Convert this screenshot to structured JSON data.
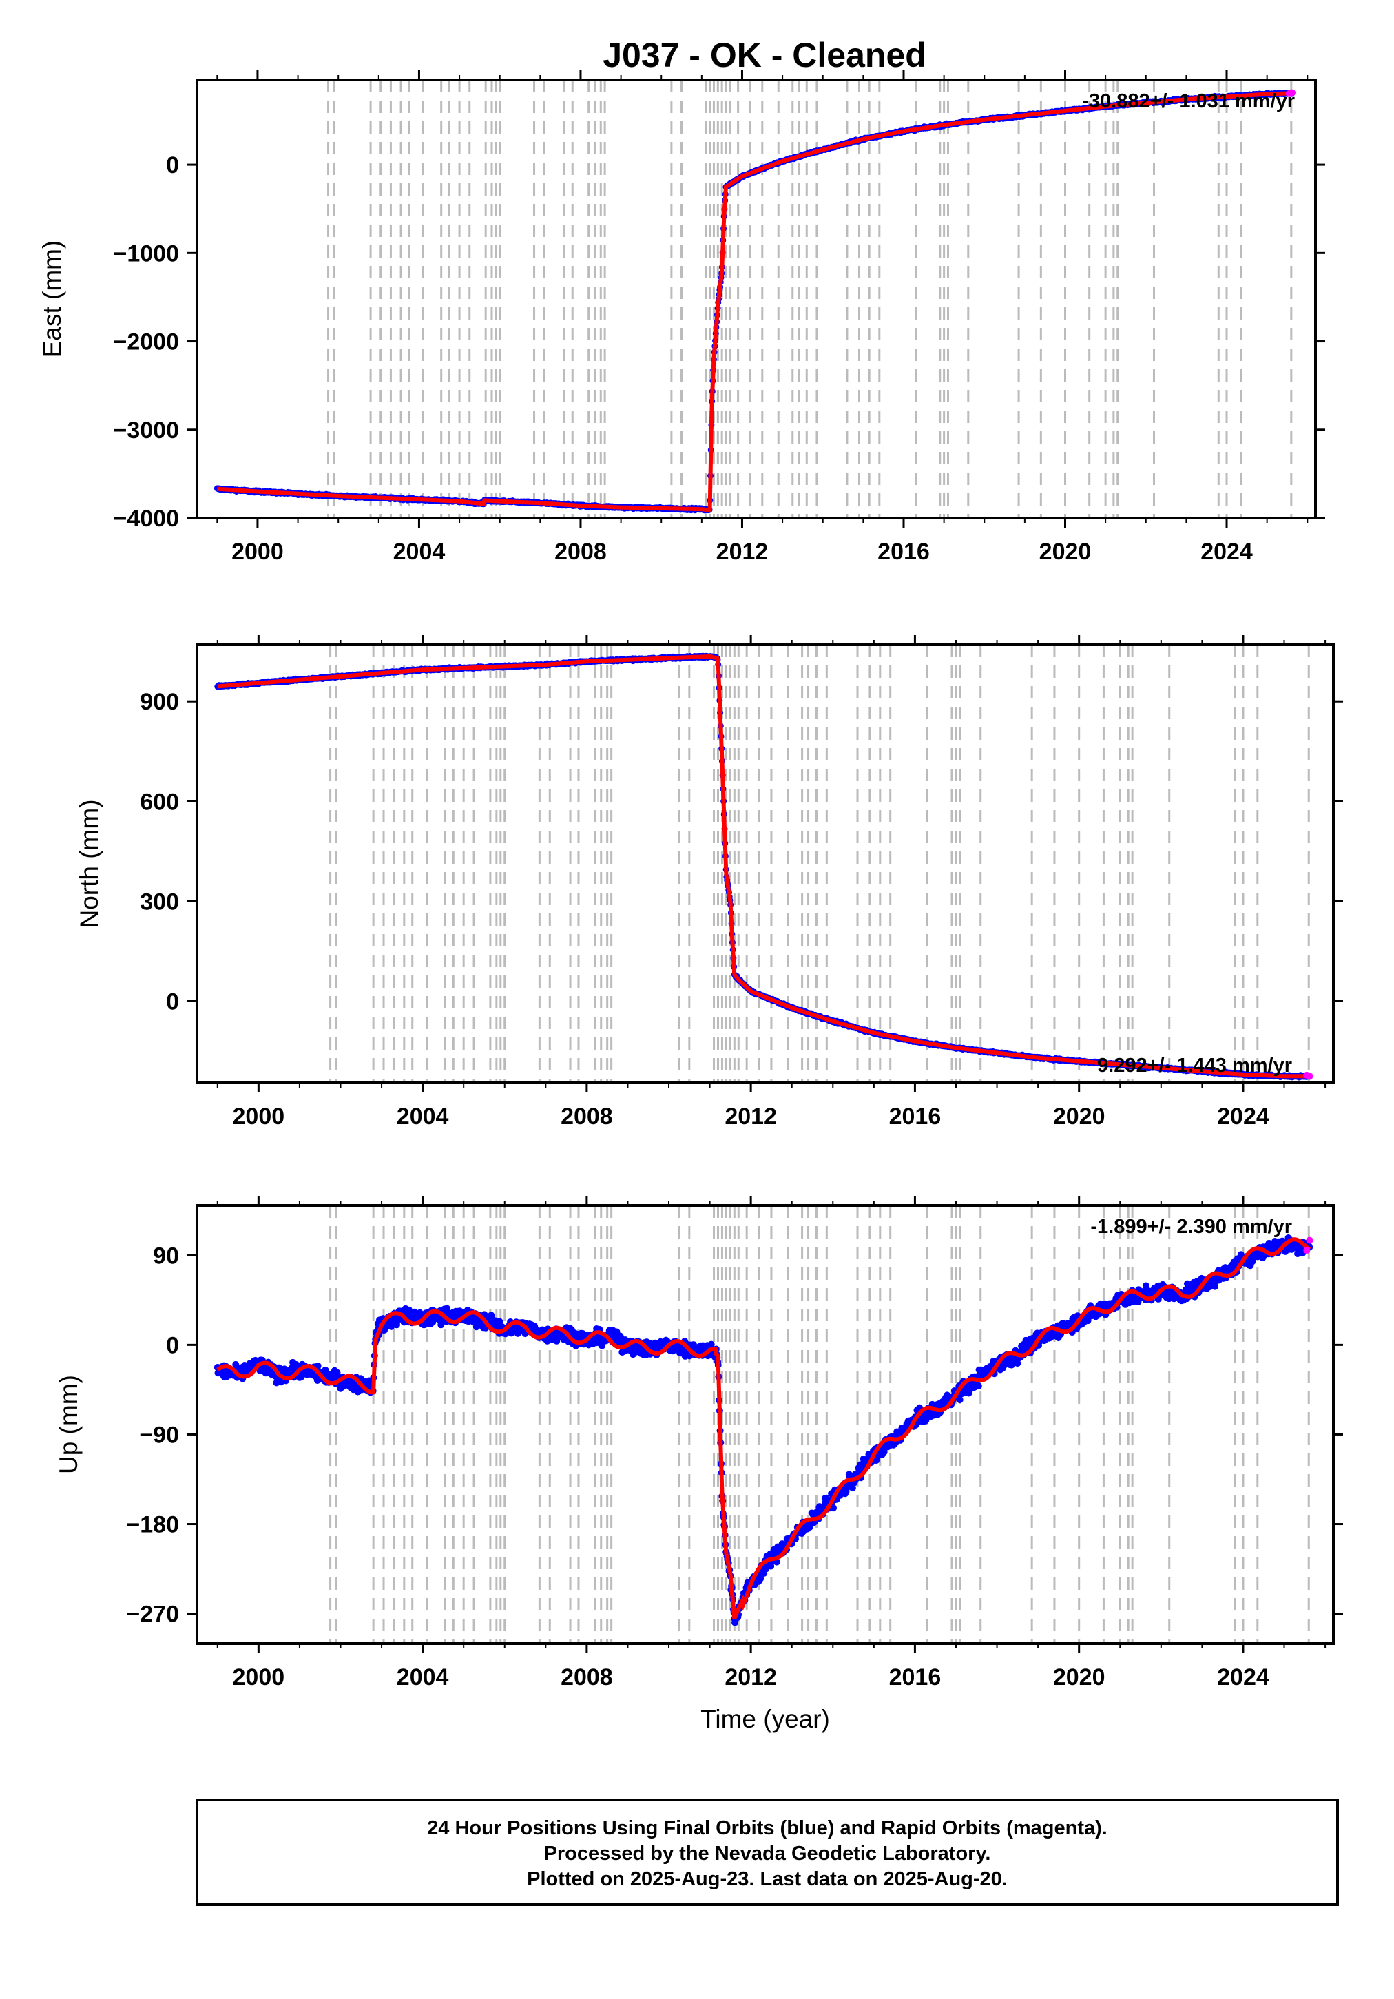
{
  "title": "J037  - OK - Cleaned",
  "footer": {
    "line1": "24 Hour Positions Using Final Orbits (blue) and Rapid Orbits (magenta).",
    "line2": "Processed by the Nevada Geodetic Laboratory.",
    "line3": "Plotted on 2025-Aug-23. Last data on 2025-Aug-20."
  },
  "colors": {
    "final_orbits": "#0000ff",
    "rapid_orbits": "#ff00ff",
    "model_fit": "#ff0000",
    "event_lines": "#bbbbbb"
  },
  "event_years": [
    2001.75,
    2001.9,
    2002.8,
    2003.05,
    2003.3,
    2003.55,
    2003.75,
    2004.1,
    2004.55,
    2004.75,
    2005.0,
    2005.25,
    2005.65,
    2005.8,
    2005.9,
    2006.0,
    2006.85,
    2007.1,
    2007.6,
    2007.8,
    2008.2,
    2008.35,
    2008.5,
    2008.6,
    2010.25,
    2010.5,
    2011.1,
    2011.2,
    2011.3,
    2011.4,
    2011.5,
    2011.6,
    2011.7,
    2011.9,
    2012.2,
    2012.5,
    2012.9,
    2013.25,
    2013.4,
    2013.6,
    2013.85,
    2014.6,
    2014.9,
    2015.15,
    2015.4,
    2016.3,
    2016.9,
    2017.0,
    2017.1,
    2017.6,
    2018.85,
    2019.4,
    2020.0,
    2020.6,
    2021.0,
    2021.2,
    2021.3,
    2022.2,
    2023.8,
    2024.0,
    2024.35,
    2025.6
  ],
  "chart_data": [
    {
      "type": "scatter",
      "name": "east",
      "ylabel": "East (mm)",
      "xlim": [
        1998.5,
        2026.2
      ],
      "ylim": [
        -4000,
        960
      ],
      "yticks": [
        -4000,
        -3000,
        -2000,
        -1000,
        0
      ],
      "ytick_labels": [
        "−4000",
        "−3000",
        "−2000",
        "−1000",
        "0"
      ],
      "xticks": [
        2000,
        2004,
        2008,
        2012,
        2016,
        2020,
        2024
      ],
      "xtick_labels": [
        "2000",
        "2004",
        "2008",
        "2012",
        "2016",
        "2020",
        "2024"
      ],
      "rate_label": "-30.882+/- 1.031 mm/yr",
      "grid": false,
      "series": [
        {
          "role": "final-orbits",
          "x": [
            1999.0,
            2000.0,
            2001.0,
            2002.0,
            2003.0,
            2004.0,
            2005.0,
            2005.6,
            2005.62,
            2006.0,
            2007.0,
            2008.0,
            2008.5,
            2009.0,
            2010.0,
            2011.0,
            2011.18,
            2011.2,
            2011.25,
            2011.3,
            2011.4,
            2011.5,
            2011.55,
            2011.6,
            2012.0,
            2013.0,
            2014.0,
            2015.0,
            2016.0,
            2017.0,
            2018.0,
            2019.0,
            2020.0,
            2021.0,
            2022.0,
            2023.0,
            2024.0,
            2025.0,
            2025.62
          ],
          "y": [
            -3670,
            -3700,
            -3725,
            -3750,
            -3770,
            -3790,
            -3810,
            -3840,
            -3800,
            -3810,
            -3830,
            -3860,
            -3870,
            -3880,
            -3890,
            -3900,
            -3910,
            -3905,
            -2700,
            -2200,
            -1600,
            -1200,
            -600,
            -250,
            -130,
            40,
            170,
            290,
            380,
            450,
            510,
            560,
            610,
            660,
            700,
            740,
            770,
            800,
            810
          ]
        },
        {
          "role": "rapid-orbits",
          "x": [
            2025.55,
            2025.62
          ],
          "y": [
            805,
            815
          ]
        }
      ]
    },
    {
      "type": "scatter",
      "name": "north",
      "ylabel": "North (mm)",
      "xlim": [
        1998.5,
        2026.2
      ],
      "ylim": [
        -245,
        1070
      ],
      "yticks": [
        0,
        300,
        600,
        900
      ],
      "ytick_labels": [
        "0",
        "300",
        "600",
        "900"
      ],
      "xticks": [
        2000,
        2004,
        2008,
        2012,
        2016,
        2020,
        2024
      ],
      "xtick_labels": [
        "2000",
        "2004",
        "2008",
        "2012",
        "2016",
        "2020",
        "2024"
      ],
      "rate_label": "9.292+/- 1.443 mm/yr",
      "grid": false,
      "series": [
        {
          "role": "final-orbits",
          "x": [
            1999.0,
            2000.0,
            2001.0,
            2002.0,
            2003.0,
            2004.0,
            2005.0,
            2006.0,
            2007.0,
            2008.0,
            2009.0,
            2010.0,
            2011.0,
            2011.18,
            2011.2,
            2011.3,
            2011.4,
            2011.5,
            2011.55,
            2011.6,
            2011.7,
            2012.0,
            2013.0,
            2014.0,
            2015.0,
            2016.0,
            2017.0,
            2018.0,
            2019.0,
            2020.0,
            2021.0,
            2022.0,
            2023.0,
            2024.0,
            2025.0,
            2025.62
          ],
          "y": [
            945,
            955,
            965,
            975,
            985,
            995,
            1000,
            1005,
            1010,
            1020,
            1025,
            1030,
            1035,
            1030,
            1025,
            720,
            380,
            300,
            180,
            80,
            65,
            30,
            -20,
            -60,
            -95,
            -120,
            -140,
            -155,
            -170,
            -180,
            -190,
            -200,
            -210,
            -220,
            -225,
            -225
          ]
        },
        {
          "role": "rapid-orbits",
          "x": [
            2025.55,
            2025.62
          ],
          "y": [
            -222,
            -225
          ]
        }
      ]
    },
    {
      "type": "scatter",
      "name": "up",
      "ylabel": "Up (mm)",
      "xlabel": "Time (year)",
      "xlim": [
        1998.5,
        2026.2
      ],
      "ylim": [
        -300,
        140
      ],
      "yticks": [
        -270,
        -180,
        -90,
        0,
        90
      ],
      "ytick_labels": [
        "−270",
        "−180",
        "−90",
        "0",
        "90"
      ],
      "xticks": [
        2000,
        2004,
        2008,
        2012,
        2016,
        2020,
        2024
      ],
      "xtick_labels": [
        "2000",
        "2004",
        "2008",
        "2012",
        "2016",
        "2020",
        "2024"
      ],
      "rate_label": "-1.899+/- 2.390 mm/yr",
      "grid": false,
      "series": [
        {
          "role": "final-orbits",
          "x": [
            1999.0,
            1999.5,
            2000.0,
            2000.5,
            2001.0,
            2001.5,
            2002.0,
            2002.5,
            2002.8,
            2002.85,
            2003.0,
            2003.5,
            2004.0,
            2004.5,
            2005.0,
            2005.5,
            2006.0,
            2006.5,
            2007.0,
            2007.5,
            2008.0,
            2008.5,
            2009.0,
            2009.5,
            2010.0,
            2010.5,
            2011.0,
            2011.18,
            2011.2,
            2011.3,
            2011.4,
            2011.5,
            2011.6,
            2011.7,
            2012.0,
            2012.5,
            2013.0,
            2013.5,
            2014.0,
            2014.5,
            2015.0,
            2015.5,
            2016.0,
            2016.5,
            2017.0,
            2017.5,
            2018.0,
            2018.5,
            2019.0,
            2019.5,
            2020.0,
            2020.5,
            2021.0,
            2021.5,
            2022.0,
            2022.5,
            2023.0,
            2023.5,
            2024.0,
            2024.5,
            2025.0,
            2025.62
          ],
          "y": [
            -25,
            -30,
            -20,
            -30,
            -25,
            -30,
            -35,
            -40,
            -42,
            10,
            20,
            30,
            25,
            30,
            28,
            25,
            15,
            18,
            10,
            12,
            5,
            8,
            0,
            -5,
            0,
            -5,
            -5,
            -10,
            -12,
            -150,
            -210,
            -230,
            -275,
            -265,
            -240,
            -215,
            -195,
            -175,
            -155,
            -135,
            -110,
            -95,
            -75,
            -65,
            -50,
            -35,
            -20,
            -10,
            5,
            15,
            25,
            35,
            45,
            50,
            55,
            50,
            60,
            70,
            85,
            95,
            100,
            100
          ]
        },
        {
          "role": "rapid-orbits",
          "x": [
            2025.55,
            2025.62
          ],
          "y": [
            95,
            105
          ]
        }
      ]
    }
  ]
}
